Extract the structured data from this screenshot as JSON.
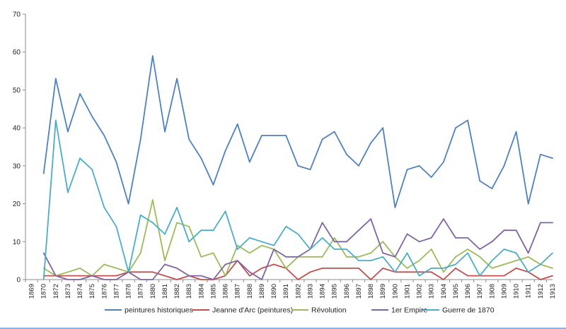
{
  "chart_data": {
    "type": "line",
    "title": "",
    "xlabel": "",
    "ylabel": "",
    "ylim": [
      0,
      70
    ],
    "yticks": [
      0,
      10,
      20,
      30,
      40,
      50,
      60,
      70
    ],
    "grid": false,
    "legend_position": "bottom",
    "categories": [
      "1869",
      "1870",
      "1872",
      "1873",
      "1874",
      "1875",
      "1876",
      "1877",
      "1878",
      "1879",
      "1880",
      "1881",
      "1882",
      "1883",
      "1884",
      "1885",
      "1886",
      "1887",
      "1888",
      "1889",
      "1890",
      "1891",
      "1892",
      "1893",
      "1894",
      "1895",
      "1896",
      "1897",
      "1898",
      "1899",
      "1900",
      "1901",
      "1902",
      "1903",
      "1904",
      "1905",
      "1906",
      "1907",
      "1908",
      "1909",
      "1910",
      "1911",
      "1912",
      "1913"
    ],
    "series": [
      {
        "name": "peintures historiques",
        "color": "#4f81bd",
        "values": [
          null,
          28,
          53,
          39,
          49,
          43,
          38,
          31,
          20,
          37,
          59,
          39,
          53,
          37,
          32,
          25,
          34,
          41,
          31,
          38,
          38,
          38,
          30,
          29,
          37,
          39,
          33,
          30,
          36,
          40,
          19,
          29,
          30,
          27,
          31,
          40,
          42,
          26,
          24,
          30,
          39,
          20,
          33,
          32
        ]
      },
      {
        "name": "Jeanne d'Arc (peintures)",
        "color": "#c0504d",
        "values": [
          null,
          1,
          1,
          1,
          1,
          1,
          1,
          1,
          2,
          2,
          2,
          1,
          0,
          1,
          0,
          0,
          1,
          5,
          1,
          3,
          4,
          3,
          0,
          2,
          3,
          3,
          3,
          3,
          0,
          3,
          2,
          2,
          2,
          2,
          0,
          3,
          1,
          1,
          1,
          1,
          3,
          2,
          0,
          1
        ]
      },
      {
        "name": "Révolution",
        "color": "#9bbb59",
        "values": [
          null,
          3,
          1,
          2,
          3,
          1,
          4,
          3,
          2,
          7,
          21,
          5,
          15,
          14,
          6,
          7,
          1,
          9,
          7,
          9,
          8,
          3,
          6,
          6,
          6,
          11,
          6,
          6,
          7,
          10,
          6,
          3,
          5,
          8,
          2,
          6,
          8,
          6,
          3,
          4,
          5,
          6,
          4,
          3
        ]
      },
      {
        "name": "1er Empire",
        "color": "#8064a2",
        "values": [
          null,
          7,
          1,
          0,
          0,
          1,
          0,
          0,
          2,
          0,
          0,
          4,
          3,
          1,
          1,
          0,
          4,
          5,
          2,
          0,
          8,
          6,
          6,
          8,
          15,
          10,
          10,
          13,
          16,
          7,
          6,
          12,
          10,
          11,
          16,
          11,
          11,
          8,
          10,
          13,
          13,
          7,
          15,
          15
        ]
      },
      {
        "name": "Guerre de 1870",
        "color": "#4bacc6",
        "values": [
          null,
          0,
          42,
          23,
          32,
          29,
          19,
          14,
          2,
          17,
          15,
          12,
          19,
          10,
          13,
          13,
          18,
          8,
          11,
          10,
          9,
          14,
          12,
          8,
          11,
          8,
          8,
          5,
          5,
          6,
          2,
          7,
          1,
          3,
          3,
          4,
          7,
          1,
          5,
          8,
          7,
          2,
          4,
          7
        ]
      }
    ]
  }
}
